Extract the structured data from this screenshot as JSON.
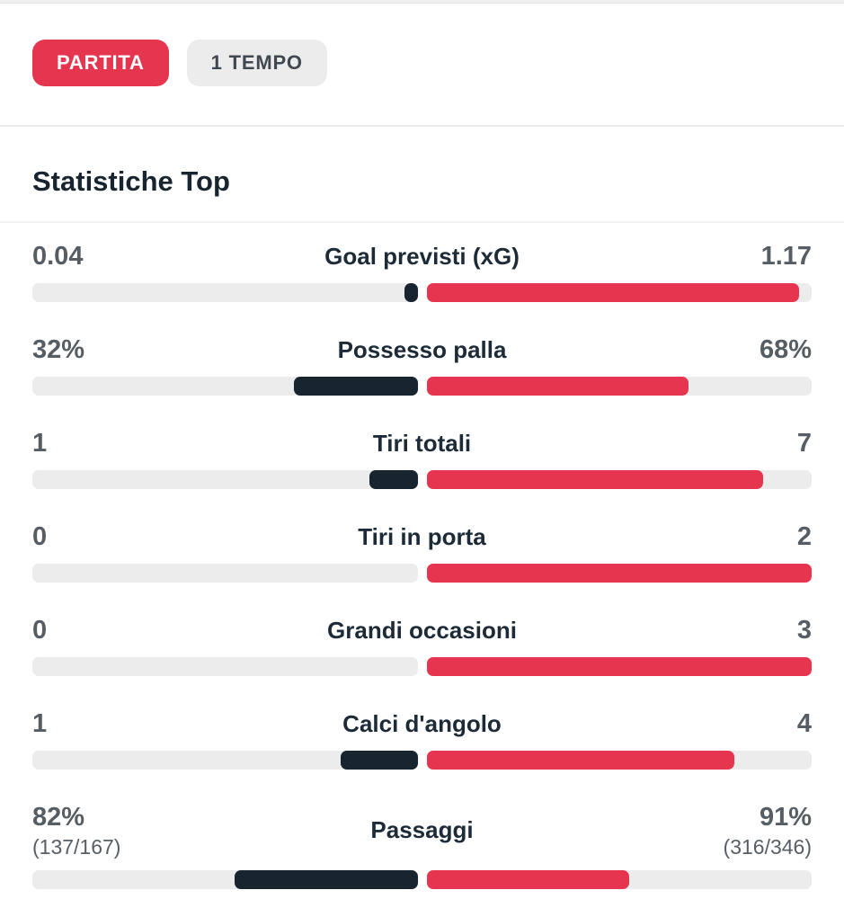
{
  "tabs": [
    {
      "label": "PARTITA",
      "active": true
    },
    {
      "label": "1 TEMPO",
      "active": false
    }
  ],
  "section_title": "Statistiche Top",
  "colors": {
    "home_bar": "#182430",
    "away_bar": "#e6354e",
    "track": "#ececec",
    "tab_active_bg": "#e6354e",
    "tab_active_text": "#ffffff",
    "tab_bg": "#ececec",
    "tab_text": "#41484f"
  },
  "stats": [
    {
      "label": "Goal previsti (xG)",
      "home_display": "0.04",
      "away_display": "1.17",
      "home_value": 0.04,
      "away_value": 1.17
    },
    {
      "label": "Possesso palla",
      "home_display": "32%",
      "away_display": "68%",
      "home_value": 32,
      "away_value": 68
    },
    {
      "label": "Tiri totali",
      "home_display": "1",
      "away_display": "7",
      "home_value": 1,
      "away_value": 7
    },
    {
      "label": "Tiri in porta",
      "home_display": "0",
      "away_display": "2",
      "home_value": 0,
      "away_value": 2
    },
    {
      "label": "Grandi occasioni",
      "home_display": "0",
      "away_display": "3",
      "home_value": 0,
      "away_value": 3
    },
    {
      "label": "Calci d'angolo",
      "home_display": "1",
      "away_display": "4",
      "home_value": 1,
      "away_value": 4
    },
    {
      "label": "Passaggi",
      "home_display": "82%",
      "home_sub": "(137/167)",
      "away_display": "91%",
      "away_sub": "(316/346)",
      "home_value": 82,
      "away_value": 91
    }
  ]
}
